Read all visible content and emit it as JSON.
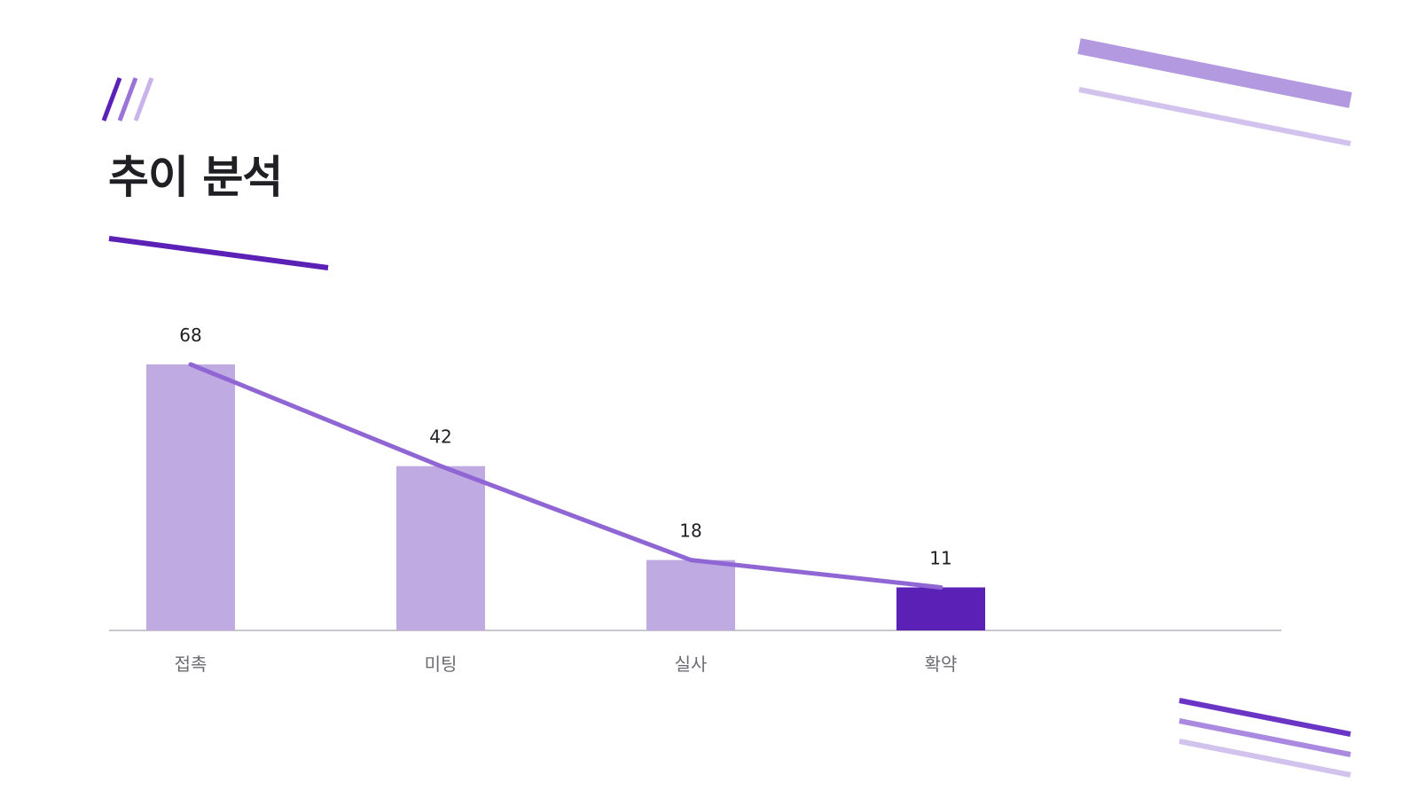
{
  "slide": {
    "title": "추이 분석"
  },
  "colors": {
    "bar": "#c0aae2",
    "bar_highlight": "#5b21b6",
    "line": "#8f66d4",
    "axis": "#c8c8cc",
    "accent_dark": "#5b21b6",
    "accent_mid": "#9b74d8",
    "accent_light": "#c8b4ea",
    "text": "#1f1f24",
    "muted_text": "#6b6b72"
  },
  "chart_data": {
    "type": "bar",
    "categories": [
      "접촉",
      "미팅",
      "실사",
      "확약"
    ],
    "values": [
      68,
      42,
      18,
      11
    ],
    "highlight_index": 3,
    "overlay": {
      "type": "line",
      "values": [
        68,
        42,
        18,
        11
      ]
    },
    "title": "",
    "xlabel": "",
    "ylabel": "",
    "ylim": [
      0,
      68
    ],
    "grid": false,
    "legend": "none"
  }
}
